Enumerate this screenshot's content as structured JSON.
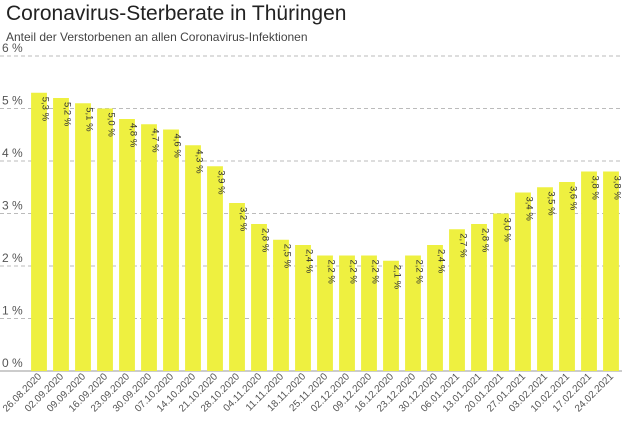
{
  "title": "Coronavirus-Sterberate in Thüringen",
  "subtitle": "Anteil der Verstorbenen an allen Coronavirus-Infektionen",
  "chart_data": {
    "type": "bar",
    "title": "Coronavirus-Sterberate in Thüringen",
    "subtitle": "Anteil der Verstorbenen an allen Coronavirus-Infektionen",
    "xlabel": "",
    "ylabel": "",
    "ylim": [
      0,
      6
    ],
    "yticks": [
      0,
      1,
      2,
      3,
      4,
      5,
      6
    ],
    "ytick_labels": [
      "0 %",
      "1 %",
      "2 %",
      "3 %",
      "4 %",
      "5 %",
      "6 %"
    ],
    "grid": true,
    "bar_color": "#eef040",
    "categories": [
      "26.08.2020",
      "02.09.2020",
      "09.09.2020",
      "16.09.2020",
      "23.09.2020",
      "30.09.2020",
      "07.10.2020",
      "14.10.2020",
      "21.10.2020",
      "28.10.2020",
      "04.11.2020",
      "11.11.2020",
      "18.11.2020",
      "25.11.2020",
      "02.12.2020",
      "09.12.2020",
      "16.12.2020",
      "23.12.2020",
      "30.12.2020",
      "06.01.2021",
      "13.01.2021",
      "20.01.2021",
      "27.01.2021",
      "03.02.2021",
      "10.02.2021",
      "17.02.2021",
      "24.02.2021"
    ],
    "x_tick_labels": [
      "26.08.2020",
      "02.09.2020",
      "09.09.2020",
      "16.09.2020",
      "23.09.2020",
      "30.09.2020",
      "07.10.2020",
      "14.10.2020",
      "21.10.2020",
      "28.10.2020",
      "04.11.2020",
      "11.11.2020",
      "18.11.2020",
      "25.11.2020",
      "02.12.2020",
      "09.12.2020",
      "16.12.2020",
      "23.12.2020",
      "30.12.2020",
      "06.01.2021",
      "13.01.2021",
      "20.01.2021",
      "27.01.2021",
      "03.02.2021",
      "10.02.2021",
      "17.02.2021",
      "24.02.2021"
    ],
    "values": [
      5.3,
      5.2,
      5.1,
      5.0,
      4.8,
      4.7,
      4.6,
      4.3,
      3.9,
      3.2,
      2.8,
      2.5,
      2.4,
      2.2,
      2.2,
      2.2,
      2.1,
      2.2,
      2.4,
      2.7,
      2.8,
      3.0,
      3.4,
      3.5,
      3.6,
      3.8,
      3.8
    ],
    "value_labels": [
      "5,3 %",
      "5,2 %",
      "5,1 %",
      "5,0 %",
      "4,8 %",
      "4,7 %",
      "4,6 %",
      "4,3 %",
      "3,9 %",
      "3,2 %",
      "2,8 %",
      "2,5 %",
      "2,4 %",
      "2,2 %",
      "2,2 %",
      "2,2 %",
      "2,1 %",
      "2,2 %",
      "2,4 %",
      "2,7 %",
      "2,8 %",
      "3,0 %",
      "3,4 %",
      "3,5 %",
      "3,6 %",
      "3,8 %",
      "3,8 %"
    ]
  }
}
